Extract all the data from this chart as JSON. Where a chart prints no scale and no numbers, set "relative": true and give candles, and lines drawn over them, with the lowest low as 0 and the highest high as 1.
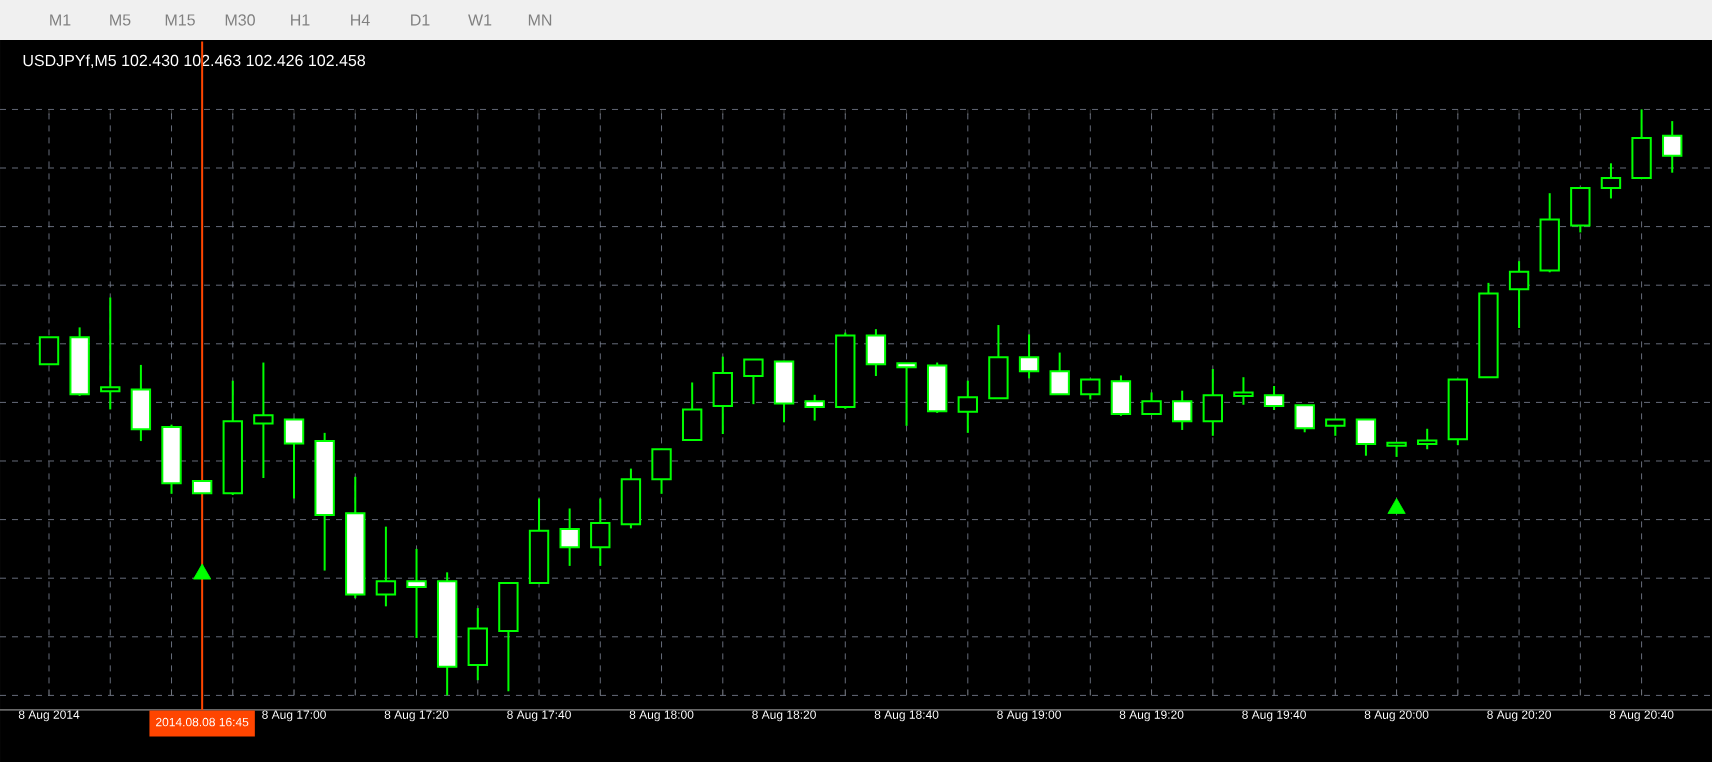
{
  "chart_data": {
    "type": "candlestick",
    "title": "USDJPYf,M5  102.430 102.463 102.426 102.458",
    "annotations": [
      "M1",
      "M5",
      "M15",
      "M30",
      "H1",
      "H4",
      "D1",
      "W1",
      "MN"
    ],
    "relative": true,
    "grid": true,
    "tick_labels": "x",
    "color": "#00ff00",
    "categories": [
      "8 Aug 2014",
      null,
      null,
      null,
      null,
      "2014.08.08 16:45",
      null,
      null,
      "8 Aug 17:00",
      null,
      null,
      null,
      "8 Aug 17:20",
      null,
      null,
      null,
      "8 Aug 17:40",
      null,
      null,
      null,
      "8 Aug 18:00",
      null,
      null,
      null,
      "8 Aug 18:20",
      null,
      null,
      null,
      "8 Aug 18:40",
      null,
      null,
      null,
      "8 Aug 19:00",
      null,
      null,
      null,
      "8 Aug 19:20",
      null,
      null,
      null,
      "8 Aug 19:40",
      null,
      null,
      null,
      "8 Aug 20:00",
      null,
      null,
      null,
      "8 Aug 20:20",
      null,
      null,
      null,
      "8 Aug 20:40",
      null
    ],
    "ohlc": [
      [
        0.565,
        0.611,
        0.565,
        0.611
      ],
      [
        0.611,
        0.628,
        0.511,
        0.514
      ],
      [
        0.519,
        0.679,
        0.488,
        0.526
      ],
      [
        0.522,
        0.564,
        0.434,
        0.454
      ],
      [
        0.458,
        0.462,
        0.344,
        0.362
      ],
      [
        0.366,
        0.367,
        0.344,
        0.345
      ],
      [
        0.345,
        0.537,
        0.342,
        0.468
      ],
      [
        0.464,
        0.568,
        0.371,
        0.478
      ],
      [
        0.471,
        0.472,
        0.336,
        0.43
      ],
      [
        0.434,
        0.448,
        0.213,
        0.308
      ],
      [
        0.311,
        0.373,
        0.166,
        0.172
      ],
      [
        0.172,
        0.288,
        0.152,
        0.195
      ],
      [
        0.195,
        0.25,
        0.098,
        0.185
      ],
      [
        0.195,
        0.21,
        0,
        0.049
      ],
      [
        0.052,
        0.149,
        0.026,
        0.114
      ],
      [
        0.11,
        0.193,
        0.007,
        0.192
      ],
      [
        0.192,
        0.336,
        0.192,
        0.281
      ],
      [
        0.284,
        0.319,
        0.221,
        0.253
      ],
      [
        0.253,
        0.336,
        0.221,
        0.294
      ],
      [
        0.292,
        0.387,
        0.285,
        0.369
      ],
      [
        0.369,
        0.421,
        0.344,
        0.42
      ],
      [
        0.436,
        0.534,
        0.435,
        0.488
      ],
      [
        0.494,
        0.578,
        0.446,
        0.55
      ],
      [
        0.545,
        0.573,
        0.497,
        0.573
      ],
      [
        0.57,
        0.571,
        0.466,
        0.498
      ],
      [
        0.502,
        0.513,
        0.469,
        0.492
      ],
      [
        0.492,
        0.619,
        0.489,
        0.614
      ],
      [
        0.614,
        0.625,
        0.545,
        0.565
      ],
      [
        0.567,
        0.567,
        0.46,
        0.56
      ],
      [
        0.563,
        0.568,
        0.482,
        0.485
      ],
      [
        0.484,
        0.537,
        0.448,
        0.509
      ],
      [
        0.507,
        0.632,
        0.506,
        0.577
      ],
      [
        0.577,
        0.616,
        0.541,
        0.553
      ],
      [
        0.553,
        0.585,
        0.513,
        0.514
      ],
      [
        0.514,
        0.539,
        0.505,
        0.539
      ],
      [
        0.536,
        0.546,
        0.477,
        0.48
      ],
      [
        0.48,
        0.517,
        0.479,
        0.502
      ],
      [
        0.502,
        0.52,
        0.453,
        0.468
      ],
      [
        0.468,
        0.557,
        0.443,
        0.512
      ],
      [
        0.511,
        0.543,
        0.496,
        0.517
      ],
      [
        0.512,
        0.528,
        0.487,
        0.494
      ],
      [
        0.495,
        0.495,
        0.449,
        0.456
      ],
      [
        0.46,
        0.471,
        0.443,
        0.471
      ],
      [
        0.471,
        0.471,
        0.409,
        0.429
      ],
      [
        0.426,
        0.431,
        0.407,
        0.431
      ],
      [
        0.429,
        0.455,
        0.42,
        0.435
      ],
      [
        0.437,
        0.539,
        0.427,
        0.539
      ],
      [
        0.543,
        0.704,
        0.543,
        0.686
      ],
      [
        0.693,
        0.741,
        0.627,
        0.723
      ],
      [
        0.725,
        0.857,
        0.722,
        0.812
      ],
      [
        0.802,
        0.866,
        0.79,
        0.866
      ],
      [
        0.866,
        0.908,
        0.848,
        0.883
      ],
      [
        0.883,
        1,
        0.883,
        0.951
      ],
      [
        0.955,
        0.98,
        0.892,
        0.921
      ]
    ],
    "series": [
      {
        "type": "scatter",
        "color": "#00ff00",
        "marker": "triangle",
        "values": [
          null,
          null,
          null,
          null,
          null,
          0.207,
          null,
          null,
          null,
          null,
          null,
          null,
          null,
          null,
          null,
          null,
          null,
          null,
          null,
          null,
          null,
          null,
          null,
          null,
          null,
          null,
          null,
          null,
          null,
          null,
          null,
          null,
          null,
          null,
          null,
          null,
          null,
          null,
          null,
          null,
          null,
          null,
          null,
          null,
          0.319,
          null,
          null,
          null,
          null,
          null,
          null,
          null,
          null,
          null
        ]
      }
    ],
    "ref_lines": [
      {
        "axis": "x",
        "value": "2014.08.08 16:45",
        "color": "#ff4500"
      }
    ]
  }
}
